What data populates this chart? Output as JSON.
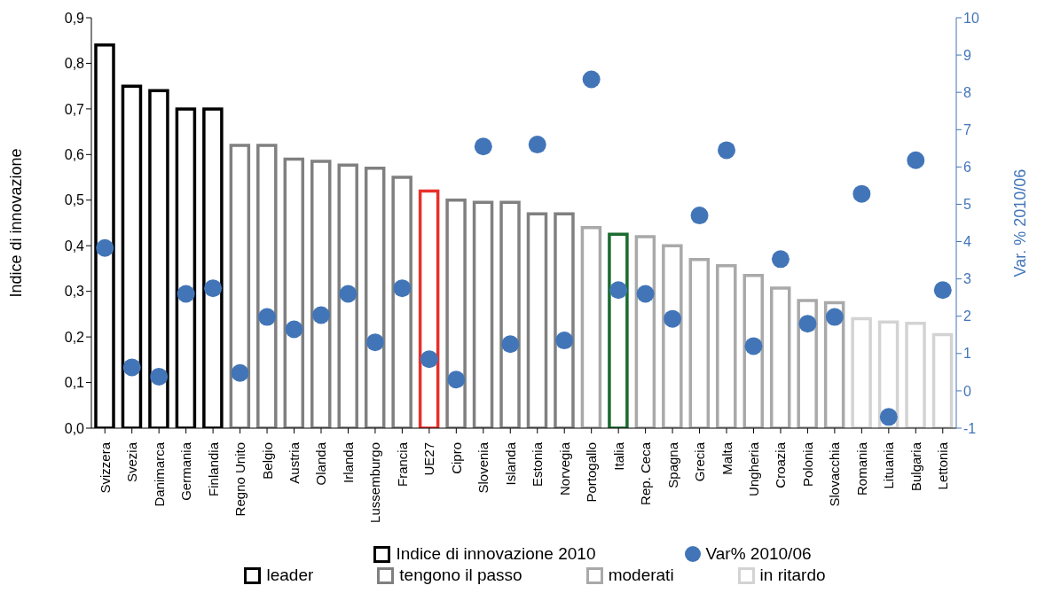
{
  "chart_data": {
    "type": "bar",
    "categories": [
      "Svizzera",
      "Svezia",
      "Danimarca",
      "Germania",
      "Finlandia",
      "Regno Unito",
      "Belgio",
      "Austria",
      "Olanda",
      "Irlanda",
      "Lussemburgo",
      "Francia",
      "UE27",
      "Cipro",
      "Slovenia",
      "Islanda",
      "Estonia",
      "Norvegia",
      "Portogallo",
      "Italia",
      "Rep. Ceca",
      "Spagna",
      "Grecia",
      "Malta",
      "Ungheria",
      "Croazia",
      "Polonia",
      "Slovacchia",
      "Romania",
      "Lituania",
      "Bulgaria",
      "Lettonia"
    ],
    "series": [
      {
        "name": "Indice di innovazione 2010",
        "colors": [
          "#000000",
          "#000000",
          "#000000",
          "#000000",
          "#000000",
          "#808080",
          "#808080",
          "#808080",
          "#808080",
          "#808080",
          "#808080",
          "#808080",
          "#e8302a",
          "#808080",
          "#808080",
          "#808080",
          "#808080",
          "#808080",
          "#a9a9a9",
          "#1a6b2e",
          "#a9a9a9",
          "#a9a9a9",
          "#a9a9a9",
          "#a9a9a9",
          "#a9a9a9",
          "#a9a9a9",
          "#a9a9a9",
          "#a9a9a9",
          "#d3d3d3",
          "#d3d3d3",
          "#d3d3d3",
          "#d3d3d3"
        ],
        "values": [
          0.84,
          0.75,
          0.74,
          0.7,
          0.7,
          0.62,
          0.62,
          0.59,
          0.585,
          0.577,
          0.57,
          0.55,
          0.52,
          0.5,
          0.495,
          0.495,
          0.47,
          0.47,
          0.44,
          0.425,
          0.42,
          0.4,
          0.37,
          0.356,
          0.335,
          0.307,
          0.28,
          0.275,
          0.24,
          0.233,
          0.23,
          0.205
        ]
      },
      {
        "name": "Var% 2010/06",
        "type": "scatter",
        "axis": "y2",
        "color": "#4275b8",
        "values": [
          3.83,
          0.63,
          0.38,
          2.6,
          2.75,
          0.48,
          1.98,
          1.65,
          2.03,
          2.6,
          1.3,
          2.75,
          0.85,
          0.3,
          6.55,
          1.25,
          6.6,
          1.35,
          8.35,
          2.7,
          2.6,
          1.93,
          4.7,
          6.45,
          1.2,
          3.53,
          1.8,
          1.98,
          5.28,
          -0.7,
          6.18,
          2.7
        ]
      }
    ],
    "ylabel": "Indice di innovazione",
    "y2label": "Var. % 2010/06",
    "ylim": [
      0,
      0.9
    ],
    "yticks": [
      {
        "value": 0,
        "label": "0,0"
      },
      {
        "value": 0.1,
        "label": "0,1"
      },
      {
        "value": 0.2,
        "label": "0,2"
      },
      {
        "value": 0.3,
        "label": "0,3"
      },
      {
        "value": 0.4,
        "label": "0,4"
      },
      {
        "value": 0.5,
        "label": "0,5"
      },
      {
        "value": 0.6,
        "label": "0,6"
      },
      {
        "value": 0.7,
        "label": "0,7"
      },
      {
        "value": 0.8,
        "label": "0,8"
      },
      {
        "value": 0.9,
        "label": "0,9"
      }
    ],
    "y2lim": [
      -1,
      10
    ],
    "y2ticks": [
      -1,
      0,
      1,
      2,
      3,
      4,
      5,
      6,
      7,
      8,
      9,
      10
    ],
    "marker": "circle",
    "legend": "bottom",
    "grid": false,
    "annotations": [
      "leader",
      "tengono il passo",
      "moderati",
      "in ritardo"
    ]
  }
}
